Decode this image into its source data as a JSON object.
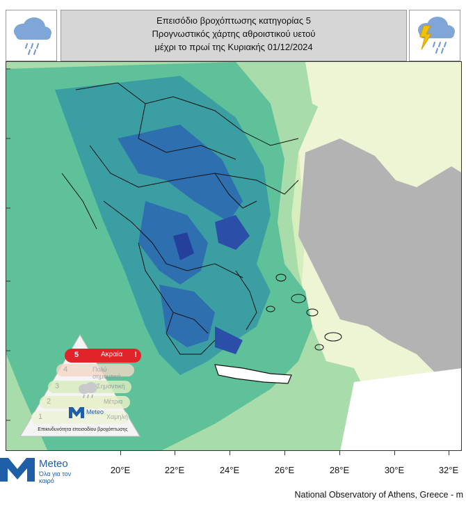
{
  "header": {
    "line1": "Επεισόδιο βροχόπτωσης κατηγορίας 5",
    "line2": "Προγνωστικός χάρτης αθροιστικού υετού",
    "line3": "μέχρι το πρωί της Κυριακής 01/12/2024"
  },
  "icons": {
    "left": "rain-cloud-icon",
    "right": "thunderstorm-cloud-icon"
  },
  "x_axis": {
    "ticks": [
      "20°E",
      "22°E",
      "24°E",
      "26°E",
      "28°E",
      "30°E",
      "32°E"
    ]
  },
  "legend": {
    "levels": [
      {
        "num": "5",
        "label": "Ακραία"
      },
      {
        "num": "4",
        "label": "Πολύ σημαντική"
      },
      {
        "num": "3",
        "label": "Σημαντική"
      },
      {
        "num": "2",
        "label": "Μέτρια"
      },
      {
        "num": "1",
        "label": "Χαμηλή"
      }
    ],
    "caption": "Επικινδυνότητα επεισοδίου βροχόπτωσης",
    "logo_name": "Meteo",
    "colors": {
      "level5": "#e0242a",
      "level4": "#f2c9b0",
      "level3": "#d8ecc0",
      "level2": "#e8f0c8",
      "level1": "#eef5d8"
    }
  },
  "brand": {
    "name": "Meteo",
    "tagline": "Όλα για τον καιρό",
    "color": "#1f5fa8"
  },
  "credit": "National Observatory of Athens, Greece - m",
  "colors": {
    "sea_light": "#cfe8b6",
    "rain_light": "#9fd9a0",
    "rain_mid": "#3fb08a",
    "rain_heavy": "#2a7fa0",
    "rain_extreme": "#2b4fa8",
    "land_gray": "#b3b3b3"
  }
}
